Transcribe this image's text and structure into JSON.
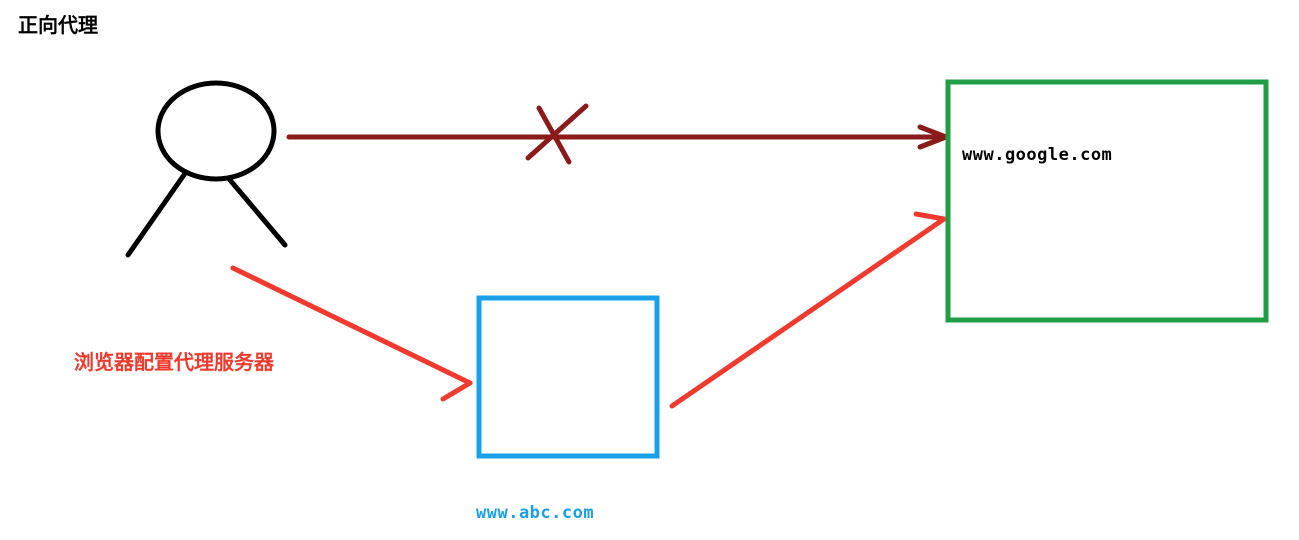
{
  "title": "正向代理",
  "proxy_caption": "浏览器配置代理服务器",
  "target_server": {
    "label": "www.google.com"
  },
  "proxy_server": {
    "label": "www.abc.com"
  },
  "colors": {
    "title": "#000000",
    "person": "#000000",
    "blocked_path": "#8b1a1a",
    "proxy_path": "#f03a2e",
    "proxy_box": "#1aa0e8",
    "target_box": "#1f9e46",
    "google_label": "#000000",
    "abc_label": "#1aa0e8"
  }
}
